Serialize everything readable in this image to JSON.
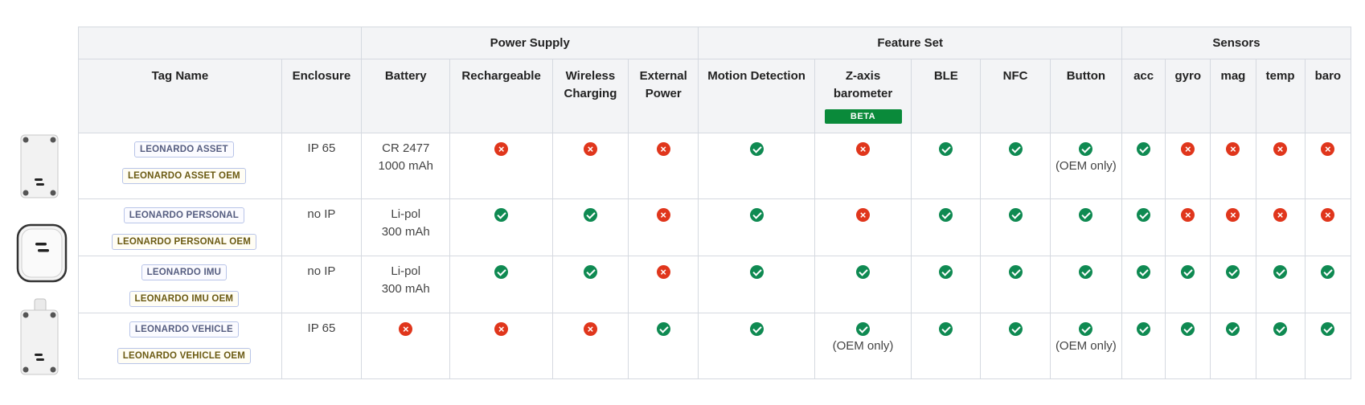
{
  "groups": {
    "power": "Power Supply",
    "features": "Feature Set",
    "sensors": "Sensors"
  },
  "columns": {
    "tag_name": "Tag Name",
    "enclosure": "Enclosure",
    "battery": "Battery",
    "rechargeable": "Rechargeable",
    "wireless_charging": "Wireless Charging",
    "external_power": "External Power",
    "motion_detection": "Motion Detection",
    "z_axis_barometer": "Z-axis barometer",
    "beta_badge": "BETA",
    "ble": "BLE",
    "nfc": "NFC",
    "button": "Button",
    "acc": "acc",
    "gyro": "gyro",
    "mag": "mag",
    "temp": "temp",
    "baro": "baro"
  },
  "rows": [
    {
      "tag": "LEONARDO ASSET",
      "tag_oem": "LEONARDO ASSET OEM",
      "enclosure": "IP 65",
      "battery_type": "CR 2477",
      "battery_capacity": "1000 mAh",
      "rechargeable": false,
      "wireless_charging": false,
      "external_power": false,
      "motion_detection": true,
      "z_axis_barometer": false,
      "ble": true,
      "nfc": true,
      "button": true,
      "button_note": "(OEM only)",
      "acc": true,
      "gyro": false,
      "mag": false,
      "temp": false,
      "baro": false
    },
    {
      "tag": "LEONARDO PERSONAL",
      "tag_oem": "LEONARDO PERSONAL OEM",
      "enclosure": "no IP",
      "battery_type": "Li-pol",
      "battery_capacity": "300 mAh",
      "rechargeable": true,
      "wireless_charging": true,
      "external_power": false,
      "motion_detection": true,
      "z_axis_barometer": false,
      "ble": true,
      "nfc": true,
      "button": true,
      "acc": true,
      "gyro": false,
      "mag": false,
      "temp": false,
      "baro": false
    },
    {
      "tag": "LEONARDO IMU",
      "tag_oem": "LEONARDO IMU OEM",
      "enclosure": "no IP",
      "battery_type": "Li-pol",
      "battery_capacity": "300 mAh",
      "rechargeable": true,
      "wireless_charging": true,
      "external_power": false,
      "motion_detection": true,
      "z_axis_barometer": true,
      "ble": true,
      "nfc": true,
      "button": true,
      "acc": true,
      "gyro": true,
      "mag": true,
      "temp": true,
      "baro": true
    },
    {
      "tag": "LEONARDO VEHICLE",
      "tag_oem": "LEONARDO VEHICLE OEM",
      "enclosure": "IP 65",
      "battery": false,
      "rechargeable": false,
      "wireless_charging": false,
      "external_power": true,
      "motion_detection": true,
      "z_axis_barometer": true,
      "z_axis_barometer_note": "(OEM only)",
      "ble": true,
      "nfc": true,
      "button": true,
      "button_note": "(OEM only)",
      "acc": true,
      "gyro": true,
      "mag": true,
      "temp": true,
      "baro": true
    }
  ],
  "colors": {
    "ok": "#0f8a52",
    "no": "#e0361c",
    "accent_header": "#1a9a2e",
    "beta": "#0a8a3a"
  },
  "icons": {
    "ok": "check-circle-icon",
    "no": "x-circle-icon"
  }
}
